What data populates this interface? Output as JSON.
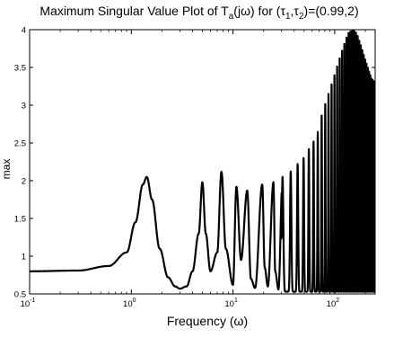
{
  "chart_data": {
    "type": "line",
    "title": "Maximum Singular Value Plot of T",
    "title_parts": {
      "main": "Maximum Singular Value Plot of T",
      "subscript": "a",
      "middle": "(jω) for (τ",
      "sub1": "1",
      "comma": ",τ",
      "sub2": "2",
      "tail": ")=(0.99,2)"
    },
    "xlabel": "Frequency (ω)",
    "ylabel": "max",
    "x_scale": "log",
    "xlim": [
      0.1,
      250
    ],
    "ylim": [
      0.5,
      4
    ],
    "grid": false,
    "x_ticks": [
      {
        "base": "10",
        "exp": "-1",
        "value": 0.1
      },
      {
        "base": "10",
        "exp": "0",
        "value": 1
      },
      {
        "base": "10",
        "exp": "1",
        "value": 10
      },
      {
        "base": "10",
        "exp": "2",
        "value": 100
      }
    ],
    "y_ticks": [
      "0.5",
      "1",
      "1.5",
      "2",
      "2.5",
      "3",
      "3.5",
      "4"
    ],
    "line_color": "#000000",
    "series": [
      {
        "x": [
          0.1,
          0.3,
          0.6,
          0.9,
          1.1,
          1.3,
          1.42,
          1.6,
          1.9,
          2.3,
          2.7,
          3.0,
          3.5,
          4.0,
          4.6,
          5.0,
          5.4,
          6.0,
          7.0,
          7.7,
          8.5,
          10.0,
          10.8,
          12.0,
          13.8,
          15.0,
          16.5,
          19.4,
          20.5,
          22.0,
          25.0,
          26.0,
          28.0,
          30.7,
          32.0,
          34.0,
          36.9,
          38.0,
          40.0,
          43.2,
          45.0,
          47.0,
          49.5,
          51.0,
          53.0,
          55.8,
          58.0,
          62.1,
          65.0,
          68.4,
          72.0,
          80.0,
          92.0,
          105.0,
          120.0,
          135.0,
          150.0,
          165.0,
          180.0,
          200.0,
          230.0,
          250.0
        ],
        "values": [
          0.8,
          0.81,
          0.87,
          1.05,
          1.45,
          1.95,
          2.05,
          1.75,
          1.1,
          0.72,
          0.6,
          0.57,
          0.6,
          0.8,
          1.3,
          1.98,
          1.3,
          0.8,
          1.05,
          2.12,
          1.1,
          0.62,
          1.92,
          0.95,
          1.87,
          0.7,
          0.58,
          1.95,
          0.85,
          0.6,
          1.98,
          0.8,
          0.56,
          2.05,
          0.85,
          0.58,
          2.12,
          0.8,
          0.56,
          2.22,
          0.8,
          0.56,
          2.3,
          0.75,
          0.55,
          2.42,
          0.75,
          2.52,
          0.55,
          2.65,
          2.8,
          3.0,
          3.25,
          3.5,
          3.75,
          3.95,
          4.0,
          3.95,
          3.8,
          3.6,
          3.35,
          3.3
        ],
        "envelope_note": "dense oscillation between ~0.52 and upper envelope for ω > 30"
      }
    ]
  }
}
